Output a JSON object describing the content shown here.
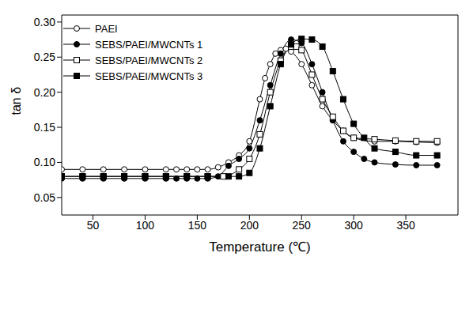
{
  "chart_data": {
    "type": "line",
    "xlabel": "Temperature (℃)",
    "ylabel": "tan δ",
    "xlim": [
      20,
      400
    ],
    "xticks": [
      50,
      100,
      150,
      200,
      250,
      300,
      350
    ],
    "ylim": [
      0.025,
      0.31
    ],
    "yticks": [
      0.05,
      {
        "value": 0.1,
        "label": "0.10"
      },
      0.15,
      {
        "value": 0.2,
        "label": "0.20"
      },
      0.25,
      {
        "value": 0.3,
        "label": "0.30"
      }
    ],
    "grid": false,
    "legend": "upper left",
    "series": [
      {
        "name": "PAEI",
        "color": "#000000",
        "marker": "open_circle",
        "line_style": "solid",
        "x": [
          20,
          40,
          60,
          80,
          100,
          120,
          130,
          140,
          150,
          160,
          170,
          180,
          190,
          200,
          210,
          215,
          220,
          225,
          230,
          235,
          240,
          250,
          260,
          270,
          280,
          290,
          300,
          320,
          340,
          360,
          380
        ],
        "values": [
          0.09,
          0.09,
          0.09,
          0.09,
          0.09,
          0.09,
          0.09,
          0.09,
          0.09,
          0.09,
          0.093,
          0.1,
          0.11,
          0.13,
          0.19,
          0.22,
          0.24,
          0.255,
          0.26,
          0.262,
          0.258,
          0.24,
          0.21,
          0.18,
          0.16,
          0.145,
          0.135,
          0.13,
          0.13,
          0.129,
          0.128
        ]
      },
      {
        "name": "SEBS/PAEI/MWCNTs 1",
        "color": "#000000",
        "marker": "filled_circle",
        "line_style": "solid",
        "x": [
          20,
          40,
          60,
          80,
          100,
          120,
          130,
          140,
          150,
          160,
          170,
          180,
          190,
          200,
          210,
          220,
          230,
          240,
          250,
          260,
          270,
          280,
          290,
          300,
          310,
          320,
          340,
          360,
          380
        ],
        "values": [
          0.077,
          0.077,
          0.077,
          0.077,
          0.077,
          0.077,
          0.077,
          0.077,
          0.077,
          0.077,
          0.08,
          0.095,
          0.105,
          0.12,
          0.16,
          0.21,
          0.255,
          0.275,
          0.27,
          0.24,
          0.2,
          0.16,
          0.13,
          0.115,
          0.105,
          0.1,
          0.097,
          0.096,
          0.096
        ]
      },
      {
        "name": "SEBS/PAEI/MWCNTs 2",
        "color": "#000000",
        "marker": "open_square",
        "line_style": "solid",
        "x": [
          20,
          40,
          60,
          80,
          100,
          120,
          140,
          160,
          175,
          190,
          200,
          210,
          220,
          230,
          240,
          245,
          250,
          260,
          270,
          280,
          290,
          300,
          320,
          340,
          360,
          380
        ],
        "values": [
          0.08,
          0.08,
          0.08,
          0.08,
          0.08,
          0.08,
          0.08,
          0.08,
          0.08,
          0.09,
          0.105,
          0.14,
          0.2,
          0.245,
          0.265,
          0.265,
          0.26,
          0.225,
          0.19,
          0.165,
          0.145,
          0.135,
          0.133,
          0.131,
          0.13,
          0.13
        ]
      },
      {
        "name": "SEBS/PAEI/MWCNTs 3",
        "color": "#000000",
        "marker": "filled_square",
        "line_style": "solid",
        "x": [
          20,
          40,
          60,
          80,
          100,
          120,
          140,
          160,
          180,
          190,
          200,
          210,
          220,
          230,
          240,
          250,
          260,
          270,
          280,
          290,
          300,
          310,
          320,
          340,
          360,
          380
        ],
        "values": [
          0.08,
          0.08,
          0.08,
          0.08,
          0.08,
          0.08,
          0.08,
          0.08,
          0.08,
          0.08,
          0.085,
          0.12,
          0.18,
          0.24,
          0.268,
          0.276,
          0.275,
          0.265,
          0.23,
          0.19,
          0.155,
          0.135,
          0.12,
          0.115,
          0.11,
          0.11
        ]
      }
    ]
  }
}
